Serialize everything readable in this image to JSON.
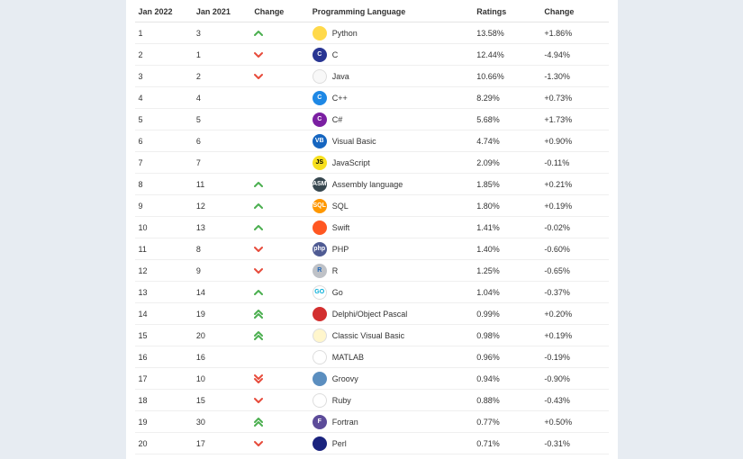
{
  "background_color": "#e7ecf2",
  "panel_color": "#ffffff",
  "border_color": "#efefef",
  "header_border_color": "#e5e5e5",
  "font_size_body": 9,
  "font_size_icon": 7,
  "columns": [
    {
      "key": "rank2022",
      "label": "Jan 2022"
    },
    {
      "key": "rank2021",
      "label": "Jan 2021"
    },
    {
      "key": "diricon",
      "label": "Change"
    },
    {
      "key": "lang",
      "label": "Programming Language"
    },
    {
      "key": "ratings",
      "label": "Ratings"
    },
    {
      "key": "change",
      "label": "Change"
    }
  ],
  "dir_colors": {
    "up": "#4caf50",
    "down": "#e74c3c"
  },
  "rows": [
    {
      "rank2022": "1",
      "rank2021": "3",
      "dir": "up",
      "mag": 1,
      "lang": "Python",
      "icon_bg": "#ffd94a",
      "icon_txt": "",
      "icon_fg": "#306998",
      "ratings": "13.58%",
      "change": "+1.86%"
    },
    {
      "rank2022": "2",
      "rank2021": "1",
      "dir": "down",
      "mag": 1,
      "lang": "C",
      "icon_bg": "#283593",
      "icon_txt": "C",
      "icon_fg": "#ffffff",
      "ratings": "12.44%",
      "change": "-4.94%"
    },
    {
      "rank2022": "3",
      "rank2021": "2",
      "dir": "down",
      "mag": 1,
      "lang": "Java",
      "icon_bg": "#f8f8f8",
      "icon_txt": "",
      "icon_fg": "#e76f00",
      "ratings": "10.66%",
      "change": "-1.30%"
    },
    {
      "rank2022": "4",
      "rank2021": "4",
      "dir": "none",
      "mag": 0,
      "lang": "C++",
      "icon_bg": "#1e88e5",
      "icon_txt": "C",
      "icon_fg": "#ffffff",
      "ratings": "8.29%",
      "change": "+0.73%"
    },
    {
      "rank2022": "5",
      "rank2021": "5",
      "dir": "none",
      "mag": 0,
      "lang": "C#",
      "icon_bg": "#7b1fa2",
      "icon_txt": "C",
      "icon_fg": "#ffffff",
      "ratings": "5.68%",
      "change": "+1.73%"
    },
    {
      "rank2022": "6",
      "rank2021": "6",
      "dir": "none",
      "mag": 0,
      "lang": "Visual Basic",
      "icon_bg": "#1565c0",
      "icon_txt": "VB",
      "icon_fg": "#ffffff",
      "ratings": "4.74%",
      "change": "+0.90%"
    },
    {
      "rank2022": "7",
      "rank2021": "7",
      "dir": "none",
      "mag": 0,
      "lang": "JavaScript",
      "icon_bg": "#f7df1e",
      "icon_txt": "JS",
      "icon_fg": "#000000",
      "ratings": "2.09%",
      "change": "-0.11%"
    },
    {
      "rank2022": "8",
      "rank2021": "11",
      "dir": "up",
      "mag": 1,
      "lang": "Assembly language",
      "icon_bg": "#37474f",
      "icon_txt": "ASM",
      "icon_fg": "#ffffff",
      "ratings": "1.85%",
      "change": "+0.21%"
    },
    {
      "rank2022": "9",
      "rank2021": "12",
      "dir": "up",
      "mag": 1,
      "lang": "SQL",
      "icon_bg": "#ff9800",
      "icon_txt": "SQL",
      "icon_fg": "#ffffff",
      "ratings": "1.80%",
      "change": "+0.19%"
    },
    {
      "rank2022": "10",
      "rank2021": "13",
      "dir": "up",
      "mag": 1,
      "lang": "Swift",
      "icon_bg": "#ff5722",
      "icon_txt": "",
      "icon_fg": "#ffffff",
      "ratings": "1.41%",
      "change": "-0.02%"
    },
    {
      "rank2022": "11",
      "rank2021": "8",
      "dir": "down",
      "mag": 1,
      "lang": "PHP",
      "icon_bg": "#4f5b93",
      "icon_txt": "php",
      "icon_fg": "#ffffff",
      "ratings": "1.40%",
      "change": "-0.60%"
    },
    {
      "rank2022": "12",
      "rank2021": "9",
      "dir": "down",
      "mag": 1,
      "lang": "R",
      "icon_bg": "#bfc2c7",
      "icon_txt": "R",
      "icon_fg": "#1f65b7",
      "ratings": "1.25%",
      "change": "-0.65%"
    },
    {
      "rank2022": "13",
      "rank2021": "14",
      "dir": "up",
      "mag": 1,
      "lang": "Go",
      "icon_bg": "#ffffff",
      "icon_txt": "GO",
      "icon_fg": "#00acd7",
      "ratings": "1.04%",
      "change": "-0.37%"
    },
    {
      "rank2022": "14",
      "rank2021": "19",
      "dir": "up",
      "mag": 2,
      "lang": "Delphi/Object Pascal",
      "icon_bg": "#d32f2f",
      "icon_txt": "",
      "icon_fg": "#ffffff",
      "ratings": "0.99%",
      "change": "+0.20%"
    },
    {
      "rank2022": "15",
      "rank2021": "20",
      "dir": "up",
      "mag": 2,
      "lang": "Classic Visual Basic",
      "icon_bg": "#fff6cc",
      "icon_txt": "",
      "icon_fg": "#a8892b",
      "ratings": "0.98%",
      "change": "+0.19%"
    },
    {
      "rank2022": "16",
      "rank2021": "16",
      "dir": "none",
      "mag": 0,
      "lang": "MATLAB",
      "icon_bg": "#ffffff",
      "icon_txt": "",
      "icon_fg": "#e45b21",
      "ratings": "0.96%",
      "change": "-0.19%"
    },
    {
      "rank2022": "17",
      "rank2021": "10",
      "dir": "down",
      "mag": 2,
      "lang": "Groovy",
      "icon_bg": "#5b8ebf",
      "icon_txt": "",
      "icon_fg": "#ffffff",
      "ratings": "0.94%",
      "change": "-0.90%"
    },
    {
      "rank2022": "18",
      "rank2021": "15",
      "dir": "down",
      "mag": 1,
      "lang": "Ruby",
      "icon_bg": "#ffffff",
      "icon_txt": "",
      "icon_fg": "#b11116",
      "ratings": "0.88%",
      "change": "-0.43%"
    },
    {
      "rank2022": "19",
      "rank2021": "30",
      "dir": "up",
      "mag": 2,
      "lang": "Fortran",
      "icon_bg": "#5c4b99",
      "icon_txt": "F",
      "icon_fg": "#ffffff",
      "ratings": "0.77%",
      "change": "+0.50%"
    },
    {
      "rank2022": "20",
      "rank2021": "17",
      "dir": "down",
      "mag": 1,
      "lang": "Perl",
      "icon_bg": "#1a237e",
      "icon_txt": "",
      "icon_fg": "#ffffff",
      "ratings": "0.71%",
      "change": "-0.31%"
    }
  ]
}
